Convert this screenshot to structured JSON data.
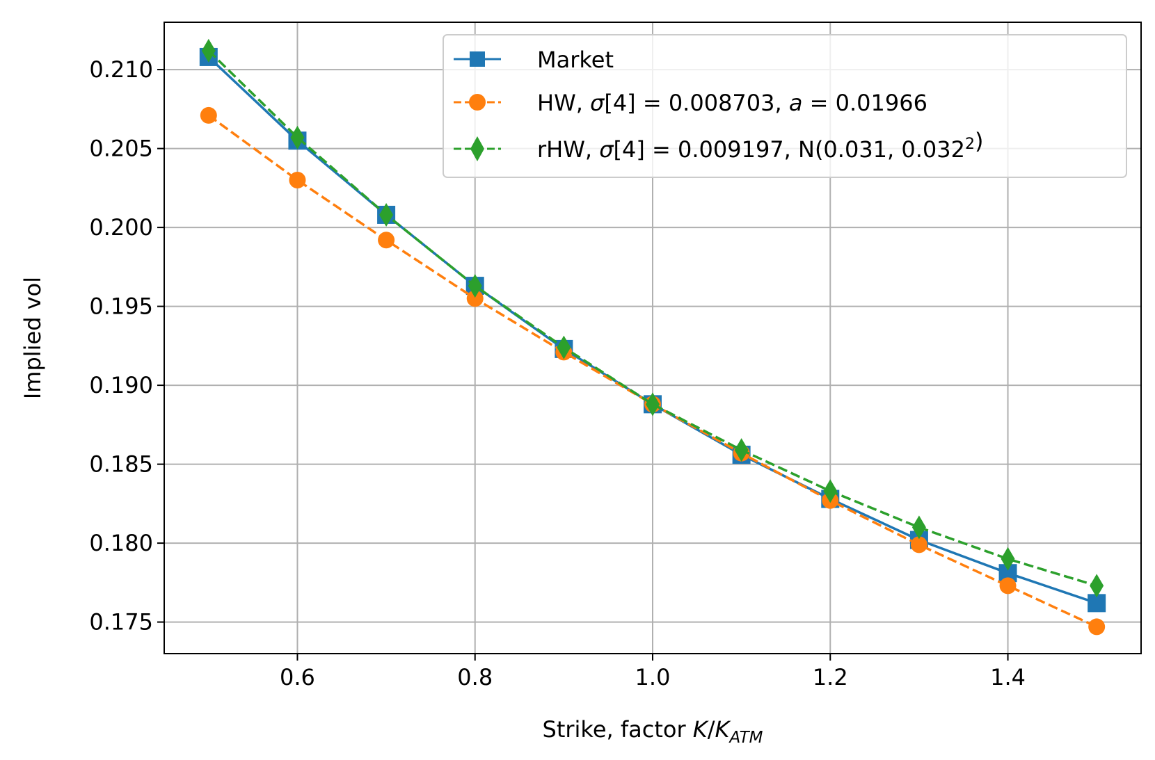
{
  "chart_data": {
    "type": "line",
    "xlabel": "Strike, factor K/K_ATM",
    "ylabel": "Implied vol",
    "xlim": [
      0.45,
      1.55
    ],
    "ylim": [
      0.173,
      0.213
    ],
    "xticks": [
      "0.6",
      "0.8",
      "1.0",
      "1.2",
      "1.4"
    ],
    "yticks": [
      "0.175",
      "0.180",
      "0.185",
      "0.190",
      "0.195",
      "0.200",
      "0.205",
      "0.210"
    ],
    "grid": true,
    "legend_position": "upper-right",
    "x": [
      0.5,
      0.6,
      0.7,
      0.8,
      0.9,
      1.0,
      1.1,
      1.2,
      1.3,
      1.4,
      1.5
    ],
    "series": [
      {
        "name": "Market",
        "color": "#1f77b4",
        "line": "solid",
        "marker": "square",
        "values": [
          0.2108,
          0.2055,
          0.2008,
          0.1963,
          0.1923,
          0.1888,
          0.1856,
          0.1828,
          0.1802,
          0.1781,
          0.1762
        ]
      },
      {
        "name": "HW, σ[4] = 0.008703, a = 0.01966",
        "color": "#ff7f0e",
        "line": "dashed",
        "marker": "circle",
        "values": [
          0.2071,
          0.203,
          0.1992,
          0.1955,
          0.1921,
          0.1888,
          0.1857,
          0.1827,
          0.1799,
          0.1773,
          0.1747
        ]
      },
      {
        "name": "rHW, σ[4] = 0.009197, N(0.031, 0.032²)",
        "color": "#2ca02c",
        "line": "dashed",
        "marker": "diamond",
        "values": [
          0.2112,
          0.2057,
          0.2008,
          0.1963,
          0.1924,
          0.1888,
          0.1859,
          0.1833,
          0.181,
          0.179,
          0.1773
        ]
      }
    ]
  }
}
